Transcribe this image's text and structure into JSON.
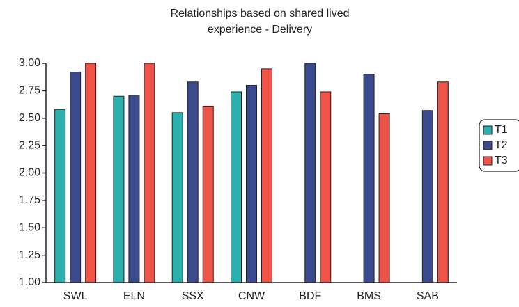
{
  "chart_data": {
    "type": "bar",
    "title": [
      "Relationships based on shared lived",
      "experience - Delivery"
    ],
    "categories": [
      "SWL",
      "ELN",
      "SSX",
      "CNW",
      "BDF",
      "BMS",
      "SAB"
    ],
    "series": [
      {
        "name": "T1",
        "color": "#2bb0ad",
        "values": [
          2.58,
          2.7,
          2.55,
          2.74,
          null,
          null,
          null
        ]
      },
      {
        "name": "T2",
        "color": "#3b4a8c",
        "values": [
          2.92,
          2.71,
          2.83,
          2.8,
          3.0,
          2.9,
          2.57
        ]
      },
      {
        "name": "T3",
        "color": "#ef5448",
        "values": [
          3.0,
          3.0,
          2.61,
          2.95,
          2.74,
          2.54,
          2.83
        ]
      }
    ],
    "ylim": [
      1,
      3
    ],
    "yticks": [
      {
        "value": 1,
        "label": "1.00"
      },
      {
        "value": 1.25,
        "label": "1.25"
      },
      {
        "value": 1.5,
        "label": "1.50"
      },
      {
        "value": 1.75,
        "label": "1.75"
      },
      {
        "value": 2,
        "label": "2.00"
      },
      {
        "value": 2.25,
        "label": "2.25"
      },
      {
        "value": 2.5,
        "label": "2.50"
      },
      {
        "value": 2.75,
        "label": "2.75"
      },
      {
        "value": 3,
        "label": "3.00"
      }
    ],
    "legend": "right"
  }
}
